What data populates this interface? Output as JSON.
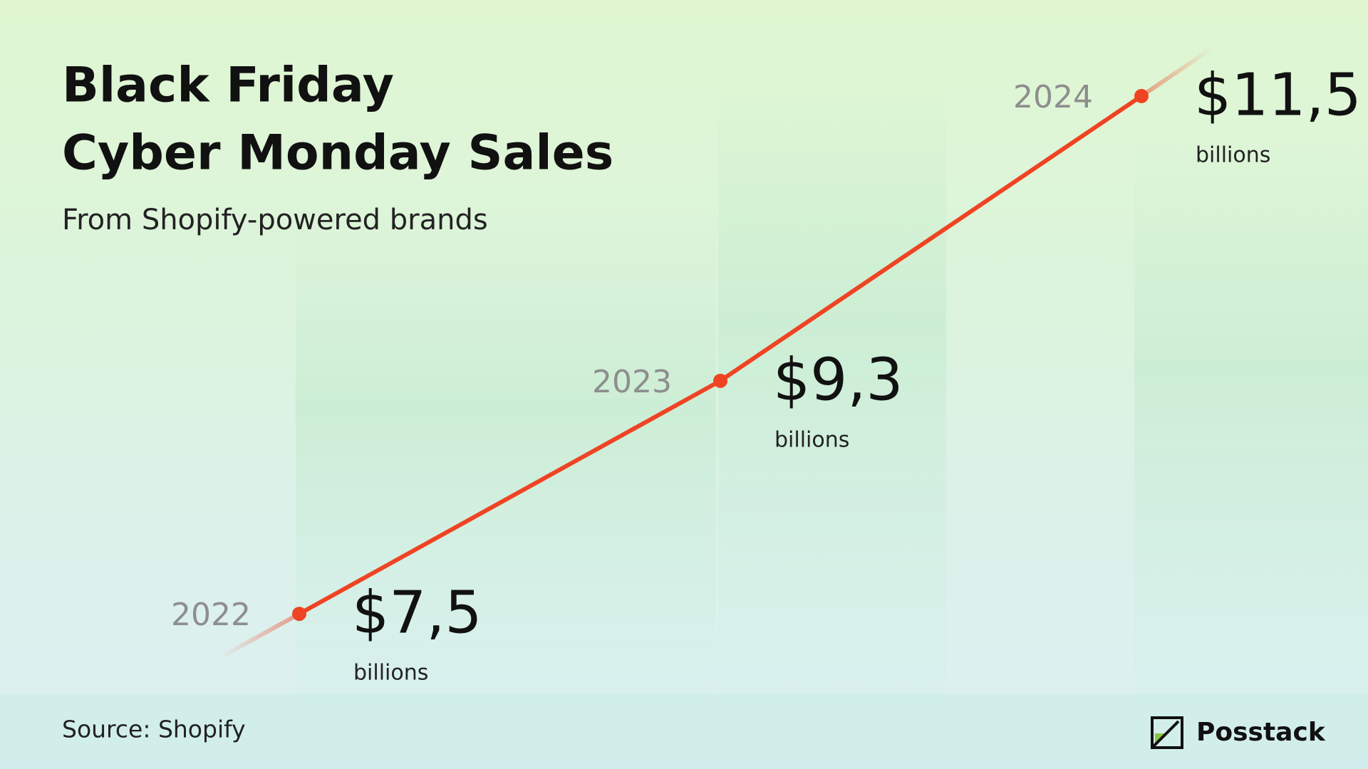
{
  "chart_data": {
    "type": "line",
    "title": [
      "Black Friday",
      "Cyber Monday Sales"
    ],
    "subtitle": "From Shopify-powered brands",
    "categories": [
      "2022",
      "2023",
      "2024"
    ],
    "values": [
      7.5,
      9.3,
      11.5
    ],
    "value_labels": [
      "$7,5",
      "$9,3",
      "$11,5"
    ],
    "unit": "billions",
    "color": "#ef4423",
    "ylim": [
      7,
      12
    ],
    "source": "Source: Shopify",
    "brand": "Posstack"
  }
}
